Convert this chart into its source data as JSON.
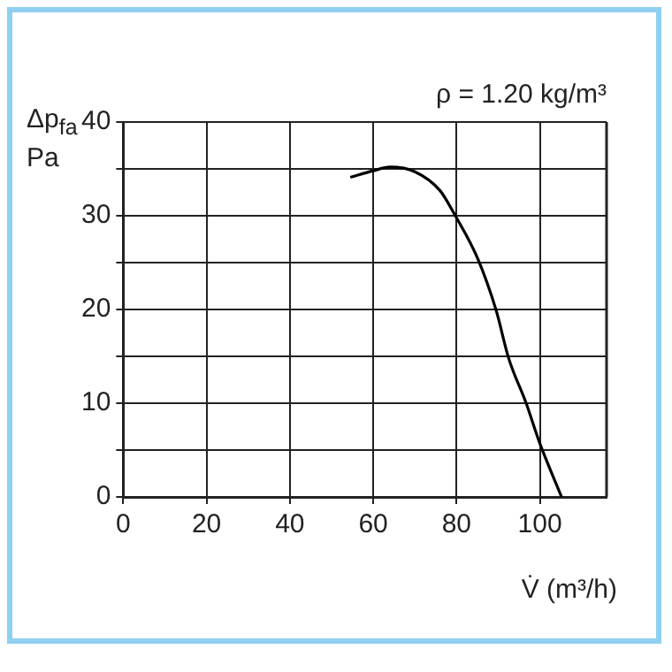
{
  "chart_data": {
    "type": "line",
    "xlabel": "V̇ (m³/h)",
    "ylabel": "Δp$_{fa}$ Pa",
    "annotations": [
      "ρ = 1.20 kg/m³"
    ],
    "x": [
      54.5,
      60,
      64,
      70,
      76,
      79.7,
      85,
      89.5,
      92.5,
      96.7,
      100,
      105.2
    ],
    "series": [
      {
        "color": "#000000",
        "values": [
          34.1,
          34.8,
          35.2,
          34.7,
          32.7,
          30.0,
          25.5,
          19.9,
          14.8,
          10.0,
          5.7,
          0
        ]
      }
    ],
    "xlim": [
      0,
      116
    ],
    "xticks": [
      0,
      20,
      40,
      60,
      80,
      100
    ],
    "ylim": [
      0,
      40
    ],
    "yticks": [
      0,
      {
        "value": 5,
        "label": null
      },
      10,
      {
        "value": 15,
        "label": null
      },
      20,
      {
        "value": 25,
        "label": null
      },
      30,
      {
        "value": 35,
        "label": null
      },
      40
    ],
    "grid": true,
    "marker": "none",
    "line_style": "solid",
    "legend": false
  }
}
